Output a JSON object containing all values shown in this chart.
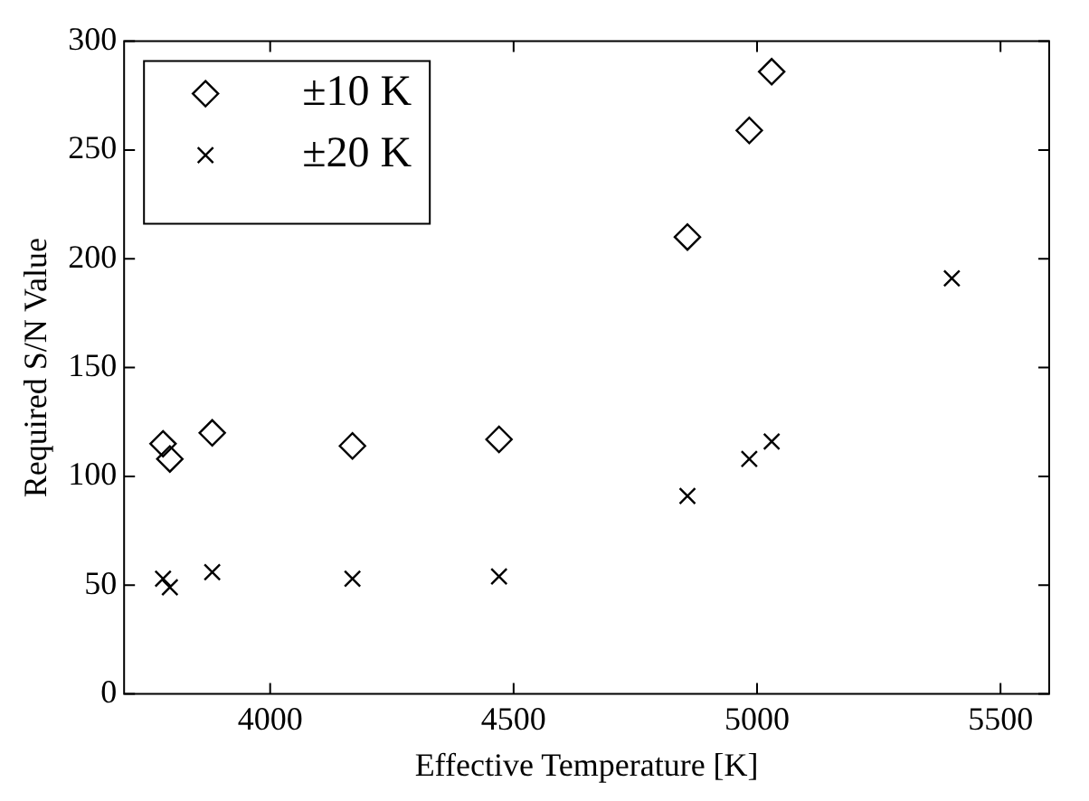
{
  "chart_data": {
    "type": "scatter",
    "xlabel": "Effective Temperature [K]",
    "ylabel": "Required S/N Value",
    "xlim": [
      3700,
      5600
    ],
    "xticks": [
      4000,
      4500,
      5000,
      5500
    ],
    "ylim": [
      0,
      300
    ],
    "yticks": [
      0,
      50,
      100,
      150,
      200,
      250,
      300
    ],
    "grid": false,
    "legend": "top left",
    "series": [
      {
        "name": "±10 K",
        "color": "#000000",
        "marker": "diamond",
        "x": [
          3780,
          3794,
          3881,
          4169,
          4470,
          4857,
          4984,
          5030
        ],
        "values": [
          115,
          108,
          120,
          114,
          117,
          210,
          259,
          286
        ]
      },
      {
        "name": "±20 K",
        "color": "#000000",
        "marker": "cross",
        "x": [
          3780,
          3794,
          3881,
          4169,
          4470,
          4857,
          4984,
          5030,
          5400
        ],
        "values": [
          53,
          49,
          56,
          53,
          54,
          91,
          108,
          116,
          191
        ]
      }
    ]
  }
}
